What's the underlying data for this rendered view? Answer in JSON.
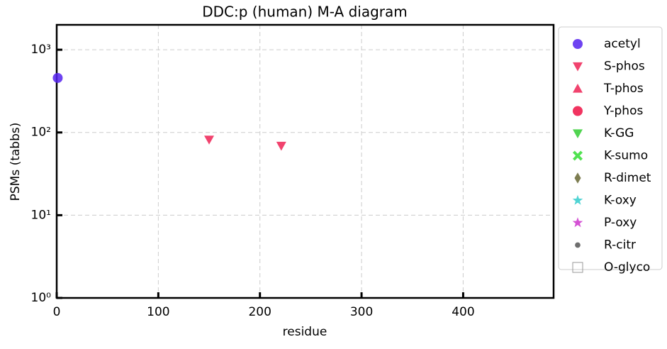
{
  "chart_data": {
    "type": "scatter",
    "title": "DDC:p (human) M-A diagram",
    "x_label": "residue",
    "y_label": "PSMs (tabbs)",
    "xlim": [
      0,
      489
    ],
    "xticks": [
      0,
      100,
      200,
      300,
      400
    ],
    "ylim": [
      1,
      2000
    ],
    "yscale": "log",
    "yticks": [
      {
        "value": 1,
        "label": "10⁰"
      },
      {
        "value": 10,
        "label": "10¹"
      },
      {
        "value": 100,
        "label": "10²"
      },
      {
        "value": 1000,
        "label": "10³"
      }
    ],
    "grid": true,
    "legend": "outside right",
    "series": [
      {
        "name": "acetyl",
        "color": "#5522ee",
        "marker": "circle",
        "x": [
          1
        ],
        "values": [
          456
        ]
      },
      {
        "name": "S-phos",
        "color": "#ee2255",
        "marker": "triangle-down",
        "x": [
          150,
          221
        ],
        "values": [
          82,
          69
        ]
      },
      {
        "name": "T-phos",
        "color": "#ee2255",
        "marker": "triangle-up",
        "x": [],
        "values": []
      },
      {
        "name": "Y-phos",
        "color": "#ee1144",
        "marker": "circle",
        "x": [],
        "values": []
      },
      {
        "name": "K-GG",
        "color": "#33cc33",
        "marker": "triangle-down",
        "x": [],
        "values": []
      },
      {
        "name": "K-sumo",
        "color": "#33dd33",
        "marker": "x",
        "x": [],
        "values": []
      },
      {
        "name": "R-dimet",
        "color": "#666633",
        "marker": "diamond",
        "x": [],
        "values": []
      },
      {
        "name": "K-oxy",
        "color": "#33cccc",
        "marker": "star",
        "x": [],
        "values": []
      },
      {
        "name": "P-oxy",
        "color": "#cc33cc",
        "marker": "star",
        "x": [],
        "values": []
      },
      {
        "name": "R-citr",
        "color": "#555555",
        "marker": "dot",
        "x": [],
        "values": []
      },
      {
        "name": "O-glyco",
        "color": "#999999",
        "marker": "square-open",
        "x": [],
        "values": []
      }
    ]
  }
}
